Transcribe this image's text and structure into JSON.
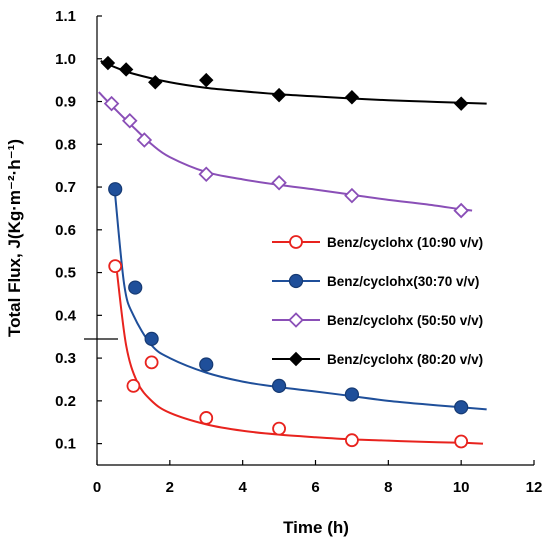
{
  "chart_data": {
    "type": "scatter",
    "xlabel": "Time (h)",
    "ylabel": "Total Flux, J(Kg·m⁻²·h⁻¹)",
    "xlim": [
      0,
      12
    ],
    "ylim": [
      0.05,
      1.1
    ],
    "x_ticks": [
      0,
      2,
      4,
      6,
      8,
      10,
      12
    ],
    "y_ticks": [
      0.1,
      0.2,
      0.3,
      0.4,
      0.5,
      0.6,
      0.7,
      0.8,
      0.9,
      1.0,
      1.1
    ],
    "y_tick_labels": [
      "0.1",
      "0.2",
      "0.3",
      "0.4",
      "0.5",
      "0.6",
      "0.7",
      "0.8",
      "0.9",
      "1.0",
      "1.1"
    ],
    "grid": false,
    "legend_position": "right-middle",
    "series": [
      {
        "name": "Benz/cyclohx (10:90 v/v)",
        "marker": "circle-open",
        "color": "#e8231e",
        "x": [
          0.5,
          1.0,
          1.5,
          3.0,
          5.0,
          7.0,
          10.0
        ],
        "y": [
          0.515,
          0.235,
          0.29,
          0.16,
          0.135,
          0.108,
          0.105
        ],
        "fit_x": [
          0.55,
          0.8,
          1.1,
          1.5,
          2.0,
          3.0,
          4.0,
          5.0,
          6.0,
          7.0,
          8.0,
          9.0,
          10.0,
          10.6
        ],
        "fit_y": [
          0.5,
          0.33,
          0.245,
          0.2,
          0.172,
          0.145,
          0.13,
          0.121,
          0.115,
          0.11,
          0.107,
          0.104,
          0.102,
          0.1
        ]
      },
      {
        "name": "Benz/cyclohx(30:70 v/v)",
        "marker": "circle-filled",
        "color": "#1f4f9a",
        "x": [
          0.5,
          1.05,
          1.5,
          3.0,
          5.0,
          7.0,
          10.0
        ],
        "y": [
          0.695,
          0.465,
          0.345,
          0.285,
          0.235,
          0.215,
          0.185
        ],
        "fit_x": [
          0.5,
          0.75,
          1.0,
          1.5,
          2.0,
          3.0,
          4.0,
          5.0,
          6.0,
          7.0,
          8.0,
          9.0,
          10.0,
          10.7
        ],
        "fit_y": [
          0.68,
          0.47,
          0.4,
          0.33,
          0.3,
          0.266,
          0.245,
          0.232,
          0.222,
          0.211,
          0.2,
          0.192,
          0.185,
          0.18
        ]
      },
      {
        "name": "Benz/cyclohx (50:50 v/v)",
        "marker": "diamond-open",
        "color": "#8a4fb7",
        "x": [
          0.4,
          0.9,
          1.3,
          3.0,
          5.0,
          7.0,
          10.0
        ],
        "y": [
          0.895,
          0.855,
          0.81,
          0.73,
          0.71,
          0.68,
          0.645
        ],
        "fit_x": [
          0.05,
          0.5,
          1.0,
          1.5,
          2.0,
          3.0,
          4.0,
          5.0,
          6.0,
          7.0,
          8.0,
          9.0,
          10.0,
          10.3
        ],
        "fit_y": [
          0.922,
          0.882,
          0.84,
          0.8,
          0.77,
          0.735,
          0.718,
          0.705,
          0.694,
          0.682,
          0.67,
          0.66,
          0.648,
          0.645
        ]
      },
      {
        "name": "Benz/cyclohx (80:20 v/v)",
        "marker": "diamond-filled",
        "color": "#000000",
        "x": [
          0.3,
          0.8,
          1.6,
          3.0,
          5.0,
          7.0,
          10.0
        ],
        "y": [
          0.99,
          0.975,
          0.945,
          0.95,
          0.915,
          0.91,
          0.895
        ],
        "fit_x": [
          0.1,
          0.5,
          1.0,
          2.0,
          3.0,
          4.0,
          5.0,
          6.0,
          7.0,
          8.0,
          9.0,
          10.0,
          10.7
        ],
        "fit_y": [
          0.995,
          0.98,
          0.965,
          0.945,
          0.932,
          0.924,
          0.917,
          0.912,
          0.907,
          0.903,
          0.9,
          0.897,
          0.895
        ]
      }
    ]
  }
}
